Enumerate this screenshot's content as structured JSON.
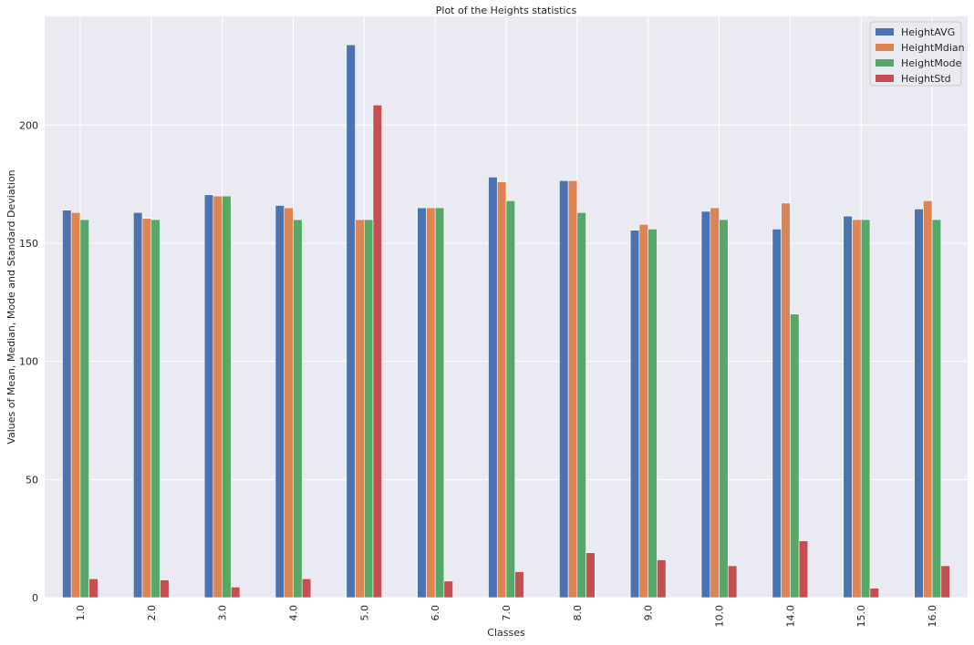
{
  "chart_data": {
    "type": "bar",
    "title": "Plot of the Heights statistics",
    "xlabel": "Classes",
    "ylabel": "Values of Mean, Median, Mode and Standard Deviation",
    "categories": [
      "1.0",
      "2.0",
      "3.0",
      "4.0",
      "5.0",
      "6.0",
      "7.0",
      "8.0",
      "9.0",
      "10.0",
      "14.0",
      "15.0",
      "16.0"
    ],
    "yticks": [
      0,
      50,
      100,
      150,
      200
    ],
    "ylim": [
      0,
      246
    ],
    "grid": true,
    "legend_position": "top-right",
    "series": [
      {
        "name": "HeightAVG",
        "color": "#4c72b0",
        "values": [
          164,
          163,
          170.5,
          166,
          234,
          165,
          178,
          176.5,
          155.5,
          163.5,
          156,
          161.5,
          164.5
        ]
      },
      {
        "name": "HeightMdian",
        "color": "#dd8452",
        "values": [
          163,
          160.5,
          170,
          165,
          160,
          165,
          176,
          176.5,
          158,
          165,
          167,
          160,
          168
        ]
      },
      {
        "name": "HeightMode",
        "color": "#55a868",
        "values": [
          160,
          160,
          170,
          160,
          160,
          165,
          168,
          163,
          156,
          160,
          120,
          160,
          160
        ]
      },
      {
        "name": "HeightStd",
        "color": "#c44e52",
        "values": [
          8,
          7.5,
          4.5,
          8,
          208.5,
          7,
          11,
          19,
          16,
          13.5,
          24,
          4,
          13.5
        ]
      }
    ]
  }
}
